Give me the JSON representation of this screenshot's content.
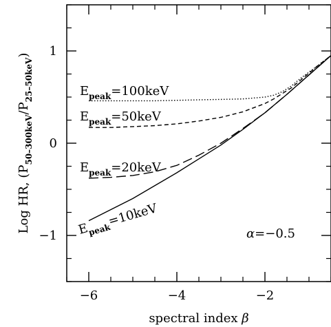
{
  "chart_data": {
    "type": "line",
    "title": "",
    "xlabel": "spectral index β",
    "xlabel_parts": {
      "text": "spectral index ",
      "symbol": "β"
    },
    "ylabel_parts": {
      "prefix": "Log HR, (P",
      "sub1": "50–300keV",
      "mid": "/P",
      "sub2": "25–50keV",
      "suffix": ")"
    },
    "xlim": [
      -6.5,
      -0.5
    ],
    "ylim": [
      -1.5,
      1.5
    ],
    "grid": false,
    "xticks_major": [
      -6,
      -4,
      -2
    ],
    "xtick_labels": [
      "−6",
      "−4",
      "−2"
    ],
    "yticks_major": [
      -1,
      0,
      1
    ],
    "ytick_labels": [
      "−1",
      "0",
      "1"
    ],
    "xticks_minor": [
      -6.5,
      -5.5,
      -5,
      -4.5,
      -3.5,
      -3,
      -2.5,
      -1.5,
      -1,
      -0.5
    ],
    "yticks_minor": [
      -1.5,
      -1.25,
      -0.75,
      -0.5,
      -0.25,
      0.25,
      0.5,
      0.75,
      1.25,
      1.5
    ],
    "annotation_parts": {
      "symbol": "α",
      "text": "=−0.5"
    },
    "series": [
      {
        "name": "Epeak=100keV",
        "label_parts": {
          "main": "E",
          "sub": "peak",
          "rest": "=100keV"
        },
        "style": "dotted",
        "x": [
          -6,
          -5.5,
          -5,
          -4.5,
          -4,
          -3.5,
          -3,
          -2.5,
          -2,
          -1.8,
          -1.6,
          -1.4,
          -1.2,
          -1.0,
          -0.8,
          -0.5
        ],
        "y": [
          0.46,
          0.46,
          0.46,
          0.46,
          0.465,
          0.47,
          0.475,
          0.48,
          0.5,
          0.52,
          0.56,
          0.62,
          0.7,
          0.77,
          0.84,
          0.95
        ]
      },
      {
        "name": "Epeak=50keV",
        "label_parts": {
          "main": "E",
          "sub": "peak",
          "rest": "=50keV"
        },
        "style": "dashed",
        "x": [
          -6,
          -5.5,
          -5,
          -4.5,
          -4,
          -3.5,
          -3,
          -2.5,
          -2,
          -1.8,
          -1.6,
          -1.4,
          -1.2,
          -1.0,
          -0.8,
          -0.5
        ],
        "y": [
          0.17,
          0.17,
          0.18,
          0.19,
          0.21,
          0.24,
          0.28,
          0.34,
          0.43,
          0.48,
          0.54,
          0.6,
          0.68,
          0.76,
          0.84,
          0.95
        ]
      },
      {
        "name": "Epeak=20keV",
        "label_parts": {
          "main": "E",
          "sub": "peak",
          "rest": "=20keV"
        },
        "style": "longdash",
        "x": [
          -6,
          -5.5,
          -5,
          -4.5,
          -4,
          -3.5,
          -3,
          -2.5,
          -2,
          -1.5,
          -1.0,
          -0.5
        ],
        "y": [
          -0.38,
          -0.37,
          -0.35,
          -0.31,
          -0.24,
          -0.13,
          0.0,
          0.16,
          0.33,
          0.53,
          0.74,
          0.95
        ]
      },
      {
        "name": "Epeak=10keV",
        "label_parts": {
          "main": "E",
          "sub": "peak",
          "rest": "=10keV"
        },
        "style": "solid",
        "x": [
          -6,
          -5.5,
          -5,
          -4.5,
          -4,
          -3.5,
          -3,
          -2.5,
          -2,
          -1.5,
          -1.0,
          -0.5
        ],
        "y": [
          -0.84,
          -0.72,
          -0.6,
          -0.46,
          -0.32,
          -0.17,
          -0.02,
          0.15,
          0.33,
          0.53,
          0.74,
          0.95
        ]
      }
    ]
  }
}
